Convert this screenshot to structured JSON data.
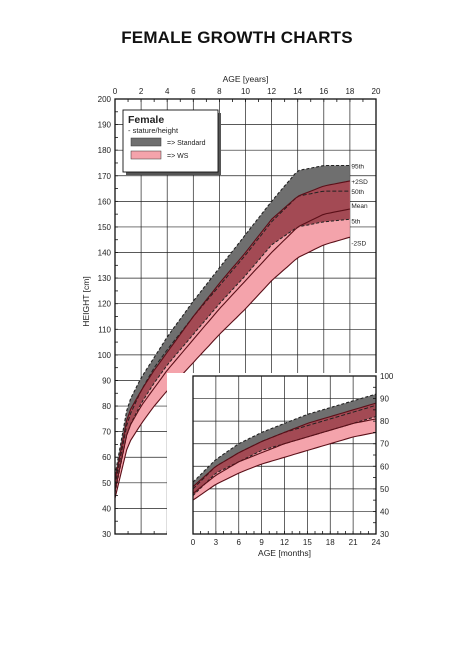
{
  "page_title": "FEMALE GROWTH CHARTS",
  "colors": {
    "standard_fill": "#6f6f6f",
    "ws_fill": "#f4a3ab",
    "overlap_fill": "#a34a54",
    "grid": "#222222",
    "ws_line": "#5b0f18"
  },
  "chart_data": [
    {
      "type": "area",
      "title": "",
      "xlabel": "AGE [years]",
      "ylabel": "HEIGHT [cm]",
      "xlim": [
        0,
        20
      ],
      "ylim": [
        30,
        200
      ],
      "x_ticks": [
        "0",
        "2",
        "4",
        "6",
        "8",
        "10",
        "12",
        "14",
        "16",
        "18",
        "20"
      ],
      "y_ticks": [
        "30",
        "40",
        "50",
        "60",
        "70",
        "80",
        "90",
        "100",
        "110",
        "120",
        "130",
        "140",
        "150",
        "160",
        "170",
        "180",
        "190",
        "200"
      ],
      "grid": true,
      "legend": {
        "placement": "top-left",
        "heading": "Female",
        "subheading": "- stature/height",
        "items": [
          {
            "label": "=> Standard",
            "color_key": "standard_fill"
          },
          {
            "label": "=> WS",
            "color_key": "ws_fill"
          }
        ]
      },
      "curve_labels": [
        "95th",
        "+2SD",
        "50th",
        "Mean",
        "5th",
        "-2SD"
      ],
      "standard": {
        "x": [
          0,
          1,
          2,
          3,
          4,
          6,
          8,
          10,
          12,
          14,
          16,
          18
        ],
        "upper_95th": [
          53,
          81,
          91,
          99,
          107,
          121,
          134,
          147,
          160,
          172,
          174,
          174
        ],
        "median_50th": [
          49,
          75,
          86,
          95,
          102,
          115,
          127,
          139,
          152,
          162,
          164,
          164
        ],
        "lower_5th": [
          46,
          71,
          81,
          89,
          96,
          108,
          120,
          131,
          143,
          150,
          152,
          153
        ]
      },
      "ws": {
        "x": [
          0,
          1,
          2,
          3,
          4,
          6,
          8,
          10,
          12,
          14,
          16,
          18
        ],
        "plus_2sd": [
          51,
          77,
          86,
          94,
          101,
          115,
          128,
          140,
          153,
          162,
          166,
          168
        ],
        "mean": [
          47,
          71,
          80,
          87,
          94,
          106,
          118,
          129,
          140,
          150,
          155,
          157
        ],
        "minus_2sd": [
          44,
          65,
          73,
          80,
          86,
          97,
          108,
          118,
          129,
          138,
          143,
          146
        ]
      }
    },
    {
      "type": "area",
      "title": "",
      "xlabel": "AGE [months]",
      "ylabel": "",
      "xlim": [
        0,
        24
      ],
      "ylim": [
        30,
        100
      ],
      "x_ticks": [
        "0",
        "3",
        "6",
        "9",
        "12",
        "15",
        "18",
        "21",
        "24"
      ],
      "y_ticks": [
        "30",
        "40",
        "50",
        "60",
        "70",
        "80",
        "90",
        "100"
      ],
      "grid": true,
      "standard": {
        "x": [
          0,
          3,
          6,
          9,
          12,
          15,
          18,
          21,
          24
        ],
        "upper_95th": [
          53,
          63,
          70,
          75,
          79,
          83,
          86,
          89,
          92
        ],
        "median_50th": [
          50,
          60,
          66,
          71,
          75,
          78,
          81,
          84,
          87
        ],
        "lower_5th": [
          47,
          57,
          62,
          67,
          70,
          73,
          76,
          79,
          82
        ]
      },
      "ws": {
        "x": [
          0,
          3,
          6,
          9,
          12,
          15,
          18,
          21,
          24
        ],
        "plus_2sd": [
          51,
          60,
          66,
          71,
          75,
          79,
          82,
          85,
          88
        ],
        "mean": [
          48,
          56,
          62,
          66,
          70,
          73,
          76,
          79,
          81
        ],
        "minus_2sd": [
          45,
          52,
          57,
          61,
          64,
          67,
          70,
          73,
          75
        ]
      }
    }
  ]
}
